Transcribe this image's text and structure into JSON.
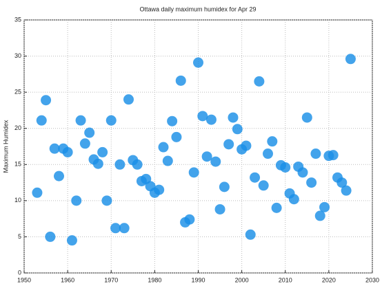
{
  "chart_data": {
    "type": "scatter",
    "title": "Ottawa daily maximum humidex for Apr 29",
    "y_label": "Maximum Humidex",
    "x": [
      1953,
      1954,
      1955,
      1956,
      1957,
      1958,
      1959,
      1960,
      1961,
      1962,
      1963,
      1964,
      1965,
      1966,
      1967,
      1968,
      1969,
      1970,
      1971,
      1972,
      1973,
      1974,
      1975,
      1976,
      1977,
      1978,
      1979,
      1980,
      1981,
      1982,
      1983,
      1984,
      1985,
      1986,
      1987,
      1988,
      1989,
      1990,
      1991,
      1992,
      1993,
      1994,
      1995,
      1996,
      1997,
      1998,
      1999,
      2000,
      2001,
      2002,
      2003,
      2004,
      2005,
      2006,
      2007,
      2008,
      2009,
      2010,
      2011,
      2012,
      2013,
      2014,
      2015,
      2016,
      2017,
      2018,
      2019,
      2020,
      2021,
      2022,
      2023,
      2024,
      2025
    ],
    "values": [
      11.1,
      21.1,
      23.9,
      5.0,
      17.2,
      13.4,
      17.2,
      16.7,
      4.5,
      10.0,
      21.1,
      17.9,
      19.4,
      15.7,
      15.1,
      16.7,
      10.0,
      21.1,
      6.2,
      15.0,
      6.2,
      24.0,
      15.6,
      15.0,
      12.7,
      13.0,
      12.0,
      11.1,
      11.5,
      17.4,
      15.5,
      21.0,
      18.8,
      26.6,
      7.0,
      7.4,
      13.9,
      29.1,
      21.7,
      16.1,
      21.2,
      15.4,
      8.8,
      11.9,
      17.8,
      21.5,
      19.9,
      17.1,
      17.6,
      5.3,
      13.2,
      26.5,
      12.1,
      16.5,
      18.2,
      9.0,
      14.9,
      14.6,
      11.0,
      10.2,
      14.7,
      13.9,
      21.5,
      12.5,
      16.5,
      7.9,
      9.1,
      16.2,
      16.3,
      13.2,
      12.5,
      11.4,
      29.6
    ],
    "color": "#1a8fe6",
    "xlim": [
      1950,
      2030
    ],
    "xticks": [
      1950,
      1960,
      1970,
      1980,
      1990,
      2000,
      2010,
      2020,
      2030
    ],
    "ylim": [
      0,
      35
    ],
    "yticks": [
      0,
      5,
      10,
      15,
      20,
      25,
      30,
      35
    ],
    "grid": true
  }
}
